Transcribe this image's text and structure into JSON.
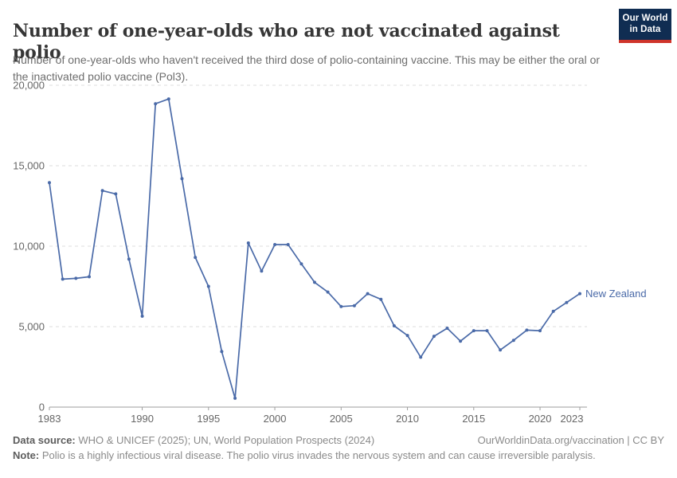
{
  "header": {
    "title": "Number of one-year-olds who are not vaccinated against polio",
    "subtitle": "Number of one-year-olds who haven't received the third dose of polio-containing vaccine. This may be either the oral or the inactivated polio vaccine (Pol3).",
    "logo": {
      "line1": "Our World",
      "line2": "in Data",
      "bg_color": "#102d52",
      "accent_color": "#cf342b",
      "text_color": "#ffffff"
    }
  },
  "chart_data": {
    "type": "line",
    "title": "Number of one-year-olds who are not vaccinated against polio",
    "xlabel": "",
    "ylabel": "",
    "xlim": [
      1983,
      2023
    ],
    "ylim": [
      0,
      20000
    ],
    "grid": "horizontal-dashed",
    "legend_position": "end-of-line-label",
    "x": [
      1983,
      1984,
      1985,
      1986,
      1987,
      1988,
      1989,
      1990,
      1991,
      1992,
      1993,
      1994,
      1995,
      1996,
      1997,
      1998,
      1999,
      2000,
      2001,
      2002,
      2003,
      2004,
      2005,
      2006,
      2007,
      2008,
      2009,
      2010,
      2011,
      2012,
      2013,
      2014,
      2015,
      2016,
      2017,
      2018,
      2019,
      2020,
      2021,
      2022,
      2023
    ],
    "series": [
      {
        "name": "New Zealand",
        "color": "#4a6aa8",
        "values": [
          13950,
          7950,
          8000,
          8100,
          13450,
          13250,
          9200,
          5650,
          18850,
          19150,
          14200,
          9300,
          7500,
          3450,
          550,
          10200,
          8450,
          10100,
          10100,
          8900,
          7750,
          7150,
          6250,
          6300,
          7050,
          6700,
          5050,
          4450,
          3100,
          4400,
          4900,
          4100,
          4750,
          4750,
          3550,
          4150,
          4780,
          4750,
          5950,
          6500,
          7050
        ]
      }
    ],
    "x_ticks": [
      "1983",
      "1990",
      "1995",
      "2000",
      "2005",
      "2010",
      "2015",
      "2020",
      "2023"
    ],
    "y_ticks": [
      {
        "value": 0,
        "label": "0"
      },
      {
        "value": 5000,
        "label": "5,000"
      },
      {
        "value": 10000,
        "label": "10,000"
      },
      {
        "value": 15000,
        "label": "15,000"
      },
      {
        "value": 20000,
        "label": "20,000"
      }
    ],
    "colors": {
      "gridline": "#dcdcdc",
      "axis": "#9e9e9e",
      "tick_label": "#666666"
    }
  },
  "footer": {
    "datasource_label": "Data source:",
    "datasource_text": " WHO & UNICEF (2025); UN, World Population Prospects (2024)",
    "rights": "OurWorldinData.org/vaccination | CC BY",
    "note_label": "Note:",
    "note_text": " Polio is a highly infectious viral disease. The polio virus invades the nervous system and can cause irreversible paralysis."
  }
}
